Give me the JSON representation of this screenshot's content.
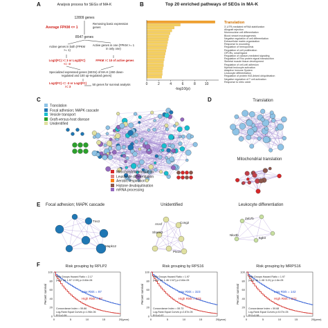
{
  "panel_labels": {
    "a": "A",
    "b": "B",
    "c": "C",
    "d": "D",
    "e": "E",
    "f": "F"
  },
  "flow": {
    "title": "Analysis process for SEGs of MA-K",
    "n_genes": "12809 genes",
    "avg_fpkm": "Average FPKM <= 1",
    "remove_note": "Removing basic expression genes",
    "n_genes2": "8547 genes",
    "active_both": "Active genes in both (FPKM >= 1)",
    "active_one": "Active genes in one (FPKM >= 1 in only one)",
    "filter_left": "Log2(FC) >= 3 or Log2(FC) <= -3",
    "filter_right": "FPKM >= 10 of active genes",
    "specialized": "Specialized expressed genes (SEGs) of MA-K (260 down-regulated and 100 up-regulated genes)",
    "filter_bottom": "Log2(FC) <= -3 or Log2(FC) >= 3",
    "survival": "50 genes for survival analysis"
  },
  "panel_b": {
    "title": "Top 20 enriched pathways of SEGs in MA-K",
    "top_label": "Translation",
    "pathways": [
      "3'-UTR-mediated mRNA stabilization",
      "Allograft rejection",
      "Mononuclear cell differentiation",
      "Blood vessel morphogenesis",
      "Negative regulation of cell differentiation",
      "Extracellular matrix organization",
      "Response to wounding",
      "Regulation of hemopoiesis",
      "Regulation of cell proliferation",
      "GPCRs, small ligand",
      "Regulation of calcium-mediated signaling",
      "Regulation of Rho protein signal transduction",
      "Skeletal muscle tissue development",
      "Regulation of cell-cell adhesion",
      "Myeloid leukocyte activation",
      "Adaptive immune System",
      "Leukocyte differentiation",
      "Regulation of protein K63-linked ubiquitination",
      "Negative regulation of T cell activation",
      "Response to nitric oxide"
    ],
    "xlabel": "-log10(p)",
    "ticks": [
      "0",
      "2",
      "4",
      "6",
      "8",
      "10"
    ]
  },
  "chart_data": {
    "type": "bar",
    "title": "Top 20 enriched pathways of SEGs in MA-K",
    "xlabel": "-log10(p)",
    "xlim": [
      0,
      12
    ],
    "categories": [
      "Translation",
      "3'-UTR-mediated mRNA stabilization",
      "Allograft rejection",
      "Mononuclear cell differentiation",
      "Blood vessel morphogenesis",
      "Negative regulation of cell differentiation",
      "Extracellular matrix organization",
      "Response to wounding",
      "Regulation of hemopoiesis",
      "Regulation of cell proliferation",
      "GPCRs, small ligand",
      "Regulation of calcium-mediated signaling",
      "Regulation of Rho protein signal transduction",
      "Skeletal muscle tissue development",
      "Regulation of cell-cell adhesion",
      "Myeloid leukocyte activation",
      "Adaptive immune System",
      "Leukocyte differentiation",
      "Regulation of protein K63-linked ubiquitination",
      "Negative regulation of T cell activation"
    ],
    "values": [
      11.4,
      5.6,
      4.6,
      4.2,
      3.9,
      3.7,
      3.6,
      3.5,
      3.4,
      3.3,
      3.2,
      3.1,
      3.0,
      2.9,
      2.8,
      2.8,
      2.7,
      2.6,
      2.6,
      2.5
    ]
  },
  "panel_c": {
    "legend_top": [
      {
        "label": "Translation",
        "color": "#8ec3e6"
      },
      {
        "label": "Focal adhesion; MAPK cascade",
        "color": "#1f77b4"
      },
      {
        "label": "Vesicle transport",
        "color": "#17becf"
      },
      {
        "label": "Graft-versus-host disease",
        "color": "#2ca02c"
      },
      {
        "label": "Unidentified",
        "color": "#e0e0a0"
      }
    ],
    "legend_bottom": [
      {
        "label": "Mitochondrial translation",
        "color": "#d62728"
      },
      {
        "label": "Leukocyte differentiation",
        "color": "#e08080"
      },
      {
        "label": "Aerobic respiration",
        "color": "#ff7f0e"
      },
      {
        "label": "Histone deubiquitination",
        "color": "#8c564b"
      },
      {
        "label": "mRNA processing",
        "color": "#9467bd"
      }
    ]
  },
  "panel_d": {
    "top_title": "Translation",
    "bottom_title": "Mitochondrial translation"
  },
  "panel_e": {
    "titles": [
      "Focal adhesion; MAPK cascade",
      "Unidentified",
      "Leukocyte differentiation"
    ],
    "net1_genes": [
      "Tns3",
      "Mapk12"
    ],
    "net2_genes": [
      "Cong2",
      "Shank3",
      "Arvcf",
      "Ptx15"
    ],
    "net3_genes": [
      "Zeb7b",
      "Nkx3b",
      "Itgb3"
    ]
  },
  "panel_f": {
    "plots": [
      {
        "title": "Risk grouping by RPLP2",
        "hr": "Risk Groups Hazard Ratio = 2.17",
        "ci": "(conf. int. 1.57~2.99) p=3.84e-06",
        "low": "Low Risk = 87",
        "high": "High Risk = 87",
        "ci2": "Concordance Index = 59.86",
        "lr": "Log-Rank Equal Curves p=1.96e-06",
        "r2": "R^2=0.99"
      },
      {
        "title": "Risk grouping by RPS16",
        "hr": "Risk Groups Hazard Ratio = 1.97",
        "ci": "(conf. int. 1.46~2.67) p=2.84e-05",
        "low": "Low Risk = 323",
        "high": "High Risk = 323",
        "ci2": "Concordance Index = 59.73",
        "lr": "Log-Rank Equal Curves p=2.87e-05",
        "r2": "R^2=0.97"
      },
      {
        "title": "Risk grouping by MRPS16",
        "hr": "Risk Groups Hazard Ratio = 1.97",
        "ci": "(conf. int. 1.46~3.21) p=1.6e-05",
        "low": "Low Risk = 142",
        "high": "High Risk = 272",
        "ci2": "Concordance Index = 59.68",
        "lr": "Log-Rank Equal Curves p=5.07e-05",
        "r2": "R^2=0.98"
      }
    ],
    "ylabel": "Percent survival",
    "xunit": "(year)",
    "xticks": [
      "0",
      "5",
      "10",
      "15",
      "20"
    ],
    "yticks": [
      "0",
      "20",
      "40",
      "60",
      "80",
      "100"
    ]
  }
}
